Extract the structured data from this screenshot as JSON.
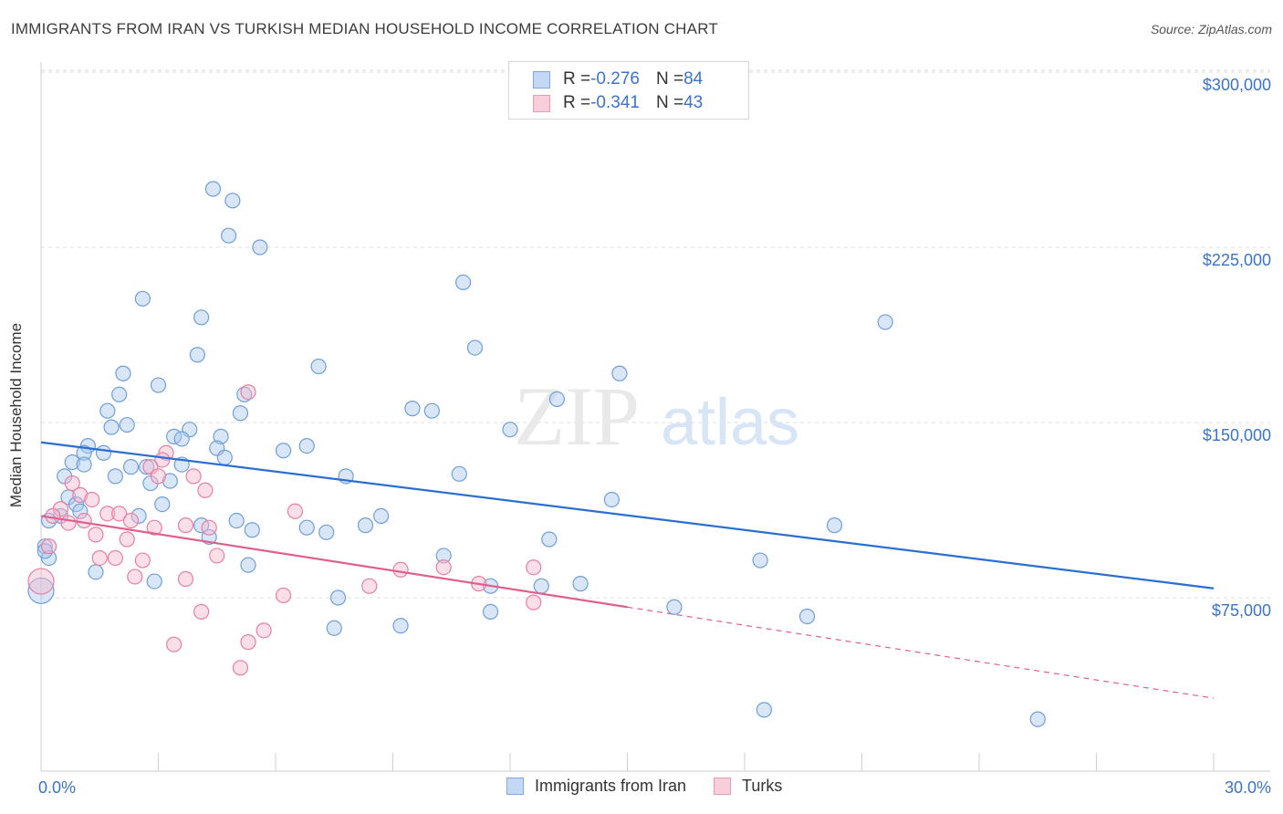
{
  "title": "IMMIGRANTS FROM IRAN VS TURKISH MEDIAN HOUSEHOLD INCOME CORRELATION CHART",
  "source": "Source: ZipAtlas.com",
  "watermark": {
    "zip": "ZIP",
    "atlas": "atlas"
  },
  "legend": {
    "series": [
      {
        "r_label": "R = ",
        "r_value": "-0.276",
        "n_label": "N = ",
        "n_value": "84"
      },
      {
        "r_label": "R = ",
        "r_value": "-0.341",
        "n_label": "N = ",
        "n_value": "43"
      }
    ]
  },
  "colors": {
    "iran_fill": "#a9c8f0",
    "iran_stroke": "#6f9fd8",
    "iran_line": "#2a6fd0",
    "turks_fill": "#f6b8cb",
    "turks_stroke": "#e8809f",
    "turks_line": "#e0608c",
    "tick_label": "#3b73c9",
    "grid": "#dcdcdc"
  },
  "chart_data": {
    "type": "scatter",
    "title": "IMMIGRANTS FROM IRAN VS TURKISH MEDIAN HOUSEHOLD INCOME CORRELATION CHART",
    "ylabel": "Median Household Income",
    "xlabel": "",
    "x_tick_labels": [
      "0.0%",
      "30.0%"
    ],
    "y_tick_labels": [
      "$75,000",
      "$150,000",
      "$225,000",
      "$300,000"
    ],
    "y_ticks": [
      75000,
      150000,
      225000,
      300000
    ],
    "xlim": [
      0,
      30
    ],
    "ylim": [
      0,
      305000
    ],
    "grid": true,
    "legend_position": "top-center",
    "series": [
      {
        "name": "Immigrants from Iran",
        "trend": {
          "x": [
            0,
            30
          ],
          "y": [
            141500,
            79000
          ]
        },
        "points": [
          [
            4.4,
            250000
          ],
          [
            4.9,
            245000
          ],
          [
            4.8,
            230000
          ],
          [
            5.6,
            225000
          ],
          [
            10.8,
            210000
          ],
          [
            2.6,
            203000
          ],
          [
            4.1,
            195000
          ],
          [
            21.6,
            193000
          ],
          [
            11.1,
            182000
          ],
          [
            4.0,
            179000
          ],
          [
            7.1,
            174000
          ],
          [
            2.1,
            171000
          ],
          [
            14.8,
            171000
          ],
          [
            3.0,
            166000
          ],
          [
            2.0,
            162000
          ],
          [
            5.2,
            162000
          ],
          [
            13.2,
            160000
          ],
          [
            1.7,
            155000
          ],
          [
            9.5,
            156000
          ],
          [
            10.0,
            155000
          ],
          [
            5.1,
            154000
          ],
          [
            1.8,
            148000
          ],
          [
            2.2,
            149000
          ],
          [
            3.8,
            147000
          ],
          [
            12.0,
            147000
          ],
          [
            3.4,
            144000
          ],
          [
            3.6,
            143000
          ],
          [
            4.6,
            144000
          ],
          [
            1.2,
            140000
          ],
          [
            4.5,
            139000
          ],
          [
            6.8,
            140000
          ],
          [
            1.1,
            137000
          ],
          [
            1.6,
            137000
          ],
          [
            6.2,
            138000
          ],
          [
            4.7,
            135000
          ],
          [
            0.8,
            133000
          ],
          [
            1.1,
            132000
          ],
          [
            2.3,
            131000
          ],
          [
            2.7,
            131000
          ],
          [
            3.6,
            132000
          ],
          [
            0.6,
            127000
          ],
          [
            1.9,
            127000
          ],
          [
            7.8,
            127000
          ],
          [
            10.7,
            128000
          ],
          [
            3.3,
            125000
          ],
          [
            2.8,
            124000
          ],
          [
            0.7,
            118000
          ],
          [
            14.6,
            117000
          ],
          [
            0.9,
            115000
          ],
          [
            3.1,
            115000
          ],
          [
            0.5,
            110000
          ],
          [
            0.2,
            108000
          ],
          [
            2.5,
            110000
          ],
          [
            5.0,
            108000
          ],
          [
            8.7,
            110000
          ],
          [
            8.3,
            106000
          ],
          [
            20.3,
            106000
          ],
          [
            5.4,
            104000
          ],
          [
            4.1,
            106000
          ],
          [
            6.8,
            105000
          ],
          [
            7.3,
            103000
          ],
          [
            4.3,
            101000
          ],
          [
            13.0,
            100000
          ],
          [
            0.1,
            97000
          ],
          [
            0.2,
            92000
          ],
          [
            10.3,
            93000
          ],
          [
            18.4,
            91000
          ],
          [
            1.4,
            86000
          ],
          [
            5.3,
            89000
          ],
          [
            2.9,
            82000
          ],
          [
            11.5,
            80000
          ],
          [
            12.8,
            80000
          ],
          [
            13.8,
            81000
          ],
          [
            7.6,
            75000
          ],
          [
            16.2,
            71000
          ],
          [
            11.5,
            69000
          ],
          [
            19.6,
            67000
          ],
          [
            7.5,
            62000
          ],
          [
            9.2,
            63000
          ],
          [
            0.0,
            78000
          ],
          [
            18.5,
            27000
          ],
          [
            25.5,
            23000
          ],
          [
            0.1,
            95000
          ],
          [
            1.0,
            112000
          ]
        ]
      },
      {
        "name": "Turks",
        "trend": {
          "x": [
            0,
            15
          ],
          "y": [
            110000,
            71000
          ]
        },
        "trend_dashed": {
          "x": [
            15,
            30
          ],
          "y": [
            71000,
            32000
          ]
        },
        "points": [
          [
            5.3,
            163000
          ],
          [
            3.2,
            137000
          ],
          [
            3.1,
            134000
          ],
          [
            2.8,
            131000
          ],
          [
            3.0,
            127000
          ],
          [
            3.9,
            127000
          ],
          [
            0.8,
            124000
          ],
          [
            4.2,
            121000
          ],
          [
            1.0,
            119000
          ],
          [
            1.3,
            117000
          ],
          [
            0.5,
            113000
          ],
          [
            6.5,
            112000
          ],
          [
            1.7,
            111000
          ],
          [
            2.0,
            111000
          ],
          [
            0.3,
            110000
          ],
          [
            1.1,
            108000
          ],
          [
            2.3,
            108000
          ],
          [
            0.7,
            107000
          ],
          [
            3.7,
            106000
          ],
          [
            4.3,
            105000
          ],
          [
            2.9,
            105000
          ],
          [
            1.4,
            102000
          ],
          [
            2.2,
            100000
          ],
          [
            0.2,
            97000
          ],
          [
            1.5,
            92000
          ],
          [
            1.9,
            92000
          ],
          [
            2.6,
            91000
          ],
          [
            4.5,
            93000
          ],
          [
            10.3,
            88000
          ],
          [
            9.2,
            87000
          ],
          [
            12.6,
            88000
          ],
          [
            2.4,
            84000
          ],
          [
            3.7,
            83000
          ],
          [
            11.2,
            81000
          ],
          [
            8.4,
            80000
          ],
          [
            6.2,
            76000
          ],
          [
            12.6,
            73000
          ],
          [
            4.1,
            69000
          ],
          [
            5.7,
            61000
          ],
          [
            5.3,
            56000
          ],
          [
            3.4,
            55000
          ],
          [
            5.1,
            45000
          ],
          [
            0.0,
            82000
          ]
        ]
      }
    ]
  },
  "bottom_legend": [
    {
      "label": "Immigrants from Iran"
    },
    {
      "label": "Turks"
    }
  ]
}
